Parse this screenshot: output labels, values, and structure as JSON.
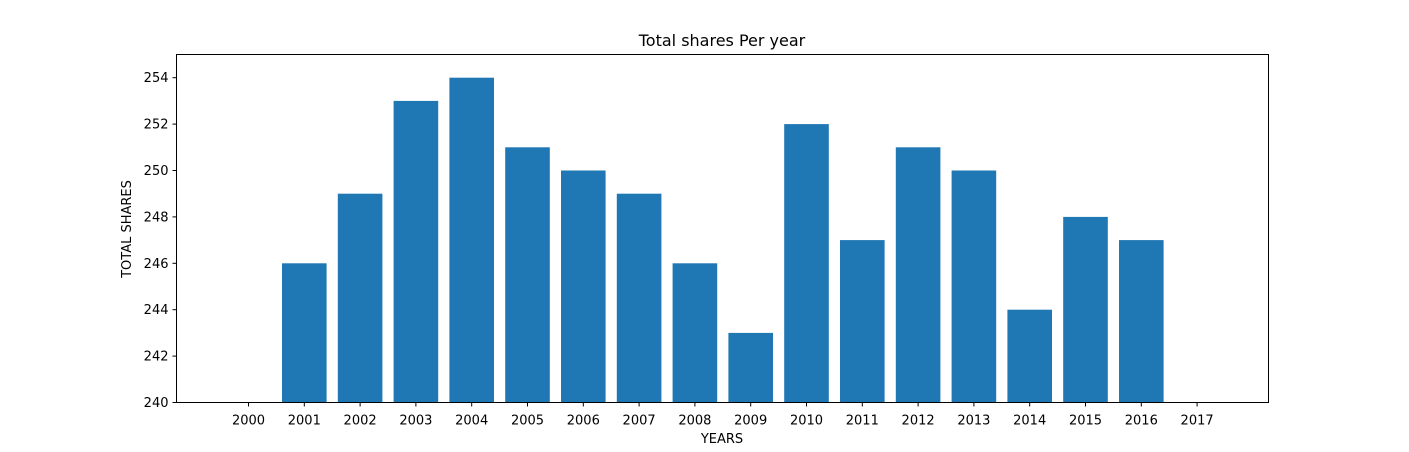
{
  "chart_data": {
    "type": "bar",
    "title": "Total shares Per year",
    "xlabel": "YEARS",
    "ylabel": "TOTAL SHARES",
    "categories": [
      "2000",
      "2001",
      "2002",
      "2003",
      "2004",
      "2005",
      "2006",
      "2007",
      "2008",
      "2009",
      "2010",
      "2011",
      "2012",
      "2013",
      "2014",
      "2015",
      "2016",
      "2017"
    ],
    "values": [
      null,
      246,
      249,
      253,
      254,
      251,
      250,
      249,
      246,
      243,
      252,
      247,
      251,
      250,
      244,
      248,
      247,
      null
    ],
    "ylim": [
      240,
      255
    ],
    "yticks": [
      240,
      242,
      244,
      246,
      248,
      250,
      252,
      254
    ],
    "grid": false,
    "bar_color": "#1f77b4"
  }
}
